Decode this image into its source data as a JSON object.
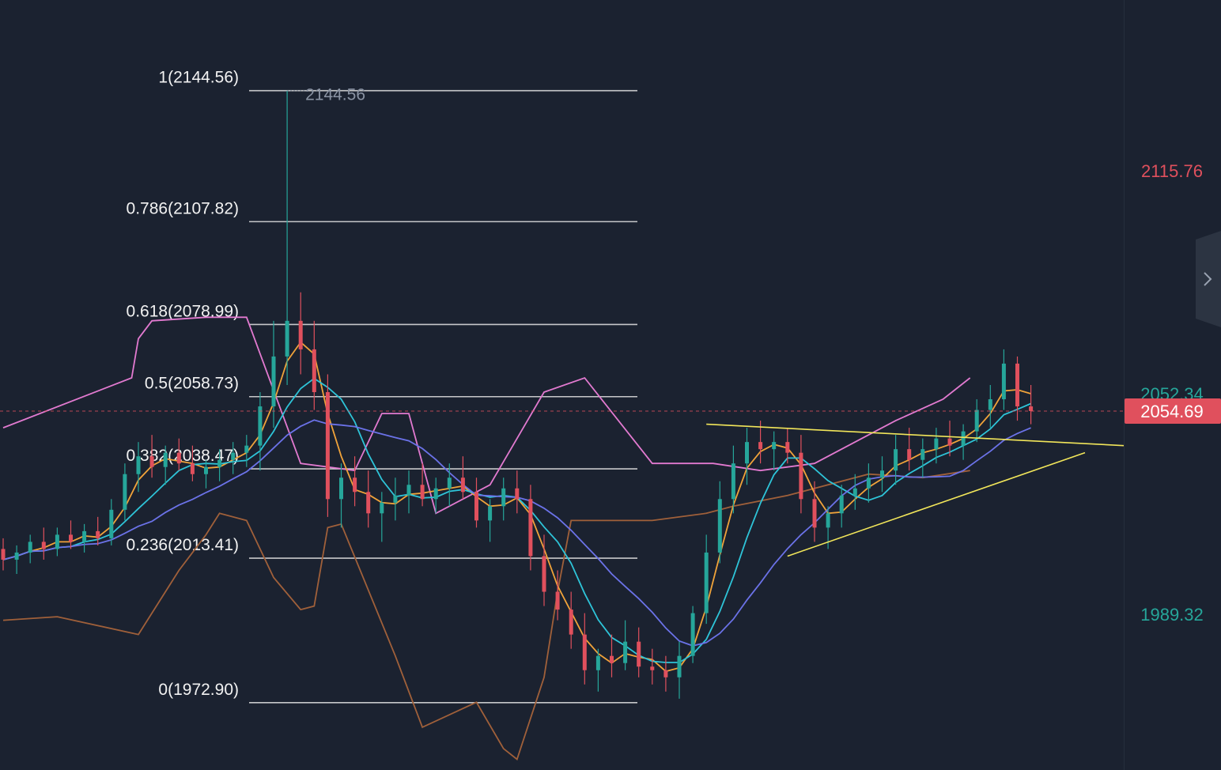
{
  "colors": {
    "background": "#1b2230",
    "up": "#26a69a",
    "down": "#e0505d",
    "fib": "#e6e6e6",
    "bb_upper": "#e27ad0",
    "bb_lower": "#a0603a",
    "ma_fast": "#f0a33a",
    "ma_mid": "#2ec4d8",
    "ma_slow": "#6b72e8",
    "trendline": "#f2e65a",
    "price_tag": "#e0505d"
  },
  "axis": {
    "top_label": "2115.76",
    "bottom_label": "1989.32",
    "current_price": "2054.69",
    "hidden_label": "2052.34"
  },
  "side_tab": {
    "icon": "chevron-right-icon"
  },
  "chart_data": {
    "type": "candlestick",
    "y_range": [
      1954,
      2170
    ],
    "current_price": 2054.69,
    "peak_label": "2144.56",
    "fib_levels": [
      {
        "ratio": 1,
        "value": 2144.56,
        "label": "1(2144.56)"
      },
      {
        "ratio": 0.786,
        "value": 2107.82,
        "label": "0.786(2107.82)"
      },
      {
        "ratio": 0.618,
        "value": 2078.99,
        "label": "0.618(2078.99)"
      },
      {
        "ratio": 0.5,
        "value": 2058.73,
        "label": "0.5(2058.73)"
      },
      {
        "ratio": 0.382,
        "value": 2038.47,
        "label": "0.382(2038.47)"
      },
      {
        "ratio": 0.236,
        "value": 2013.41,
        "label": "0.236(2013.41)"
      },
      {
        "ratio": 0,
        "value": 1972.9,
        "label": "0(1972.90)"
      }
    ],
    "candles": [
      [
        2016,
        2019,
        2010,
        2013
      ],
      [
        2013,
        2017,
        2009,
        2015
      ],
      [
        2015,
        2020,
        2012,
        2018
      ],
      [
        2018,
        2022,
        2013,
        2016
      ],
      [
        2016,
        2022,
        2014,
        2020
      ],
      [
        2020,
        2024,
        2016,
        2018
      ],
      [
        2018,
        2023,
        2015,
        2021
      ],
      [
        2021,
        2025,
        2017,
        2019
      ],
      [
        2019,
        2030,
        2017,
        2027
      ],
      [
        2027,
        2040,
        2024,
        2037
      ],
      [
        2037,
        2046,
        2032,
        2042
      ],
      [
        2042,
        2048,
        2036,
        2039
      ],
      [
        2039,
        2045,
        2034,
        2043
      ],
      [
        2043,
        2047,
        2038,
        2040
      ],
      [
        2040,
        2045,
        2035,
        2037
      ],
      [
        2037,
        2041,
        2033,
        2039
      ],
      [
        2039,
        2044,
        2035,
        2041
      ],
      [
        2041,
        2046,
        2037,
        2043
      ],
      [
        2043,
        2048,
        2039,
        2045
      ],
      [
        2045,
        2060,
        2038,
        2056
      ],
      [
        2056,
        2080,
        2050,
        2070
      ],
      [
        2070,
        2144.56,
        2062,
        2080
      ],
      [
        2080,
        2088,
        2065,
        2072
      ],
      [
        2072,
        2080,
        2055,
        2060
      ],
      [
        2060,
        2065,
        2025,
        2030
      ],
      [
        2030,
        2040,
        2022,
        2036
      ],
      [
        2036,
        2042,
        2028,
        2032
      ],
      [
        2032,
        2038,
        2022,
        2026
      ],
      [
        2026,
        2032,
        2018,
        2029
      ],
      [
        2029,
        2036,
        2024,
        2031
      ],
      [
        2031,
        2038,
        2026,
        2034
      ],
      [
        2034,
        2040,
        2028,
        2030
      ],
      [
        2030,
        2036,
        2026,
        2033
      ],
      [
        2033,
        2040,
        2028,
        2036
      ],
      [
        2036,
        2042,
        2030,
        2032
      ],
      [
        2032,
        2036,
        2022,
        2024
      ],
      [
        2024,
        2030,
        2018,
        2028
      ],
      [
        2028,
        2036,
        2024,
        2033
      ],
      [
        2033,
        2038,
        2026,
        2030
      ],
      [
        2030,
        2034,
        2010,
        2014
      ],
      [
        2014,
        2020,
        2000,
        2004
      ],
      [
        2004,
        2010,
        1996,
        1999
      ],
      [
        1999,
        2004,
        1988,
        1992
      ],
      [
        1992,
        1998,
        1978,
        1982
      ],
      [
        1982,
        1988,
        1976,
        1986
      ],
      [
        1986,
        1992,
        1980,
        1984
      ],
      [
        1984,
        1996,
        1982,
        1990
      ],
      [
        1990,
        1994,
        1980,
        1983
      ],
      [
        1983,
        1988,
        1978,
        1982
      ],
      [
        1982,
        1986,
        1976,
        1980
      ],
      [
        1980,
        1990,
        1974,
        1986
      ],
      [
        1986,
        2000,
        1984,
        1998
      ],
      [
        1998,
        2020,
        1995,
        2015
      ],
      [
        2015,
        2035,
        2012,
        2030
      ],
      [
        2030,
        2045,
        2026,
        2040
      ],
      [
        2040,
        2050,
        2034,
        2046
      ],
      [
        2046,
        2052,
        2040,
        2044
      ],
      [
        2044,
        2049,
        2038,
        2046
      ],
      [
        2046,
        2050,
        2040,
        2043
      ],
      [
        2043,
        2048,
        2026,
        2030
      ],
      [
        2030,
        2035,
        2018,
        2022
      ],
      [
        2022,
        2028,
        2016,
        2026
      ],
      [
        2026,
        2034,
        2022,
        2031
      ],
      [
        2031,
        2037,
        2027,
        2033
      ],
      [
        2033,
        2040,
        2029,
        2036
      ],
      [
        2036,
        2042,
        2032,
        2038
      ],
      [
        2038,
        2048,
        2034,
        2044
      ],
      [
        2044,
        2050,
        2038,
        2041
      ],
      [
        2041,
        2047,
        2036,
        2044
      ],
      [
        2044,
        2050,
        2040,
        2047
      ],
      [
        2047,
        2052,
        2042,
        2045
      ],
      [
        2045,
        2051,
        2041,
        2049
      ],
      [
        2049,
        2058,
        2046,
        2055
      ],
      [
        2055,
        2062,
        2050,
        2058
      ],
      [
        2058,
        2072,
        2055,
        2068
      ],
      [
        2068,
        2070,
        2052,
        2056
      ],
      [
        2056,
        2062,
        2051,
        2054.69
      ]
    ],
    "bb_upper": [
      [
        0,
        2050
      ],
      [
        19,
        2064
      ],
      [
        20,
        2075
      ],
      [
        22,
        2080
      ],
      [
        30,
        2081
      ],
      [
        36,
        2081
      ],
      [
        44,
        2040
      ],
      [
        52,
        2038
      ],
      [
        56,
        2054
      ],
      [
        60,
        2054
      ],
      [
        64,
        2026
      ],
      [
        72,
        2034
      ],
      [
        80,
        2060
      ],
      [
        86,
        2064
      ],
      [
        96,
        2040
      ],
      [
        105,
        2040
      ],
      [
        112,
        2038
      ],
      [
        120,
        2040
      ],
      [
        128,
        2048
      ],
      [
        132,
        2052
      ],
      [
        139,
        2058
      ],
      [
        143,
        2064
      ]
    ],
    "bb_lower": [
      [
        0,
        1996
      ],
      [
        8,
        1997
      ],
      [
        20,
        1992
      ],
      [
        26,
        2010
      ],
      [
        30,
        2020
      ],
      [
        32,
        2026
      ],
      [
        36,
        2024
      ],
      [
        40,
        2008
      ],
      [
        44,
        1999
      ],
      [
        46,
        2000
      ],
      [
        48,
        2022
      ],
      [
        50,
        2023
      ],
      [
        58,
        1986
      ],
      [
        62,
        1966
      ],
      [
        70,
        1973
      ],
      [
        74,
        1960
      ],
      [
        76,
        1957
      ],
      [
        80,
        1980
      ],
      [
        82,
        2004
      ],
      [
        84,
        2024
      ],
      [
        88,
        2024
      ],
      [
        96,
        2024
      ],
      [
        104,
        2026
      ],
      [
        108,
        2028
      ],
      [
        116,
        2031
      ],
      [
        120,
        2033
      ],
      [
        128,
        2037
      ],
      [
        136,
        2036
      ],
      [
        143,
        2038
      ]
    ]
  }
}
